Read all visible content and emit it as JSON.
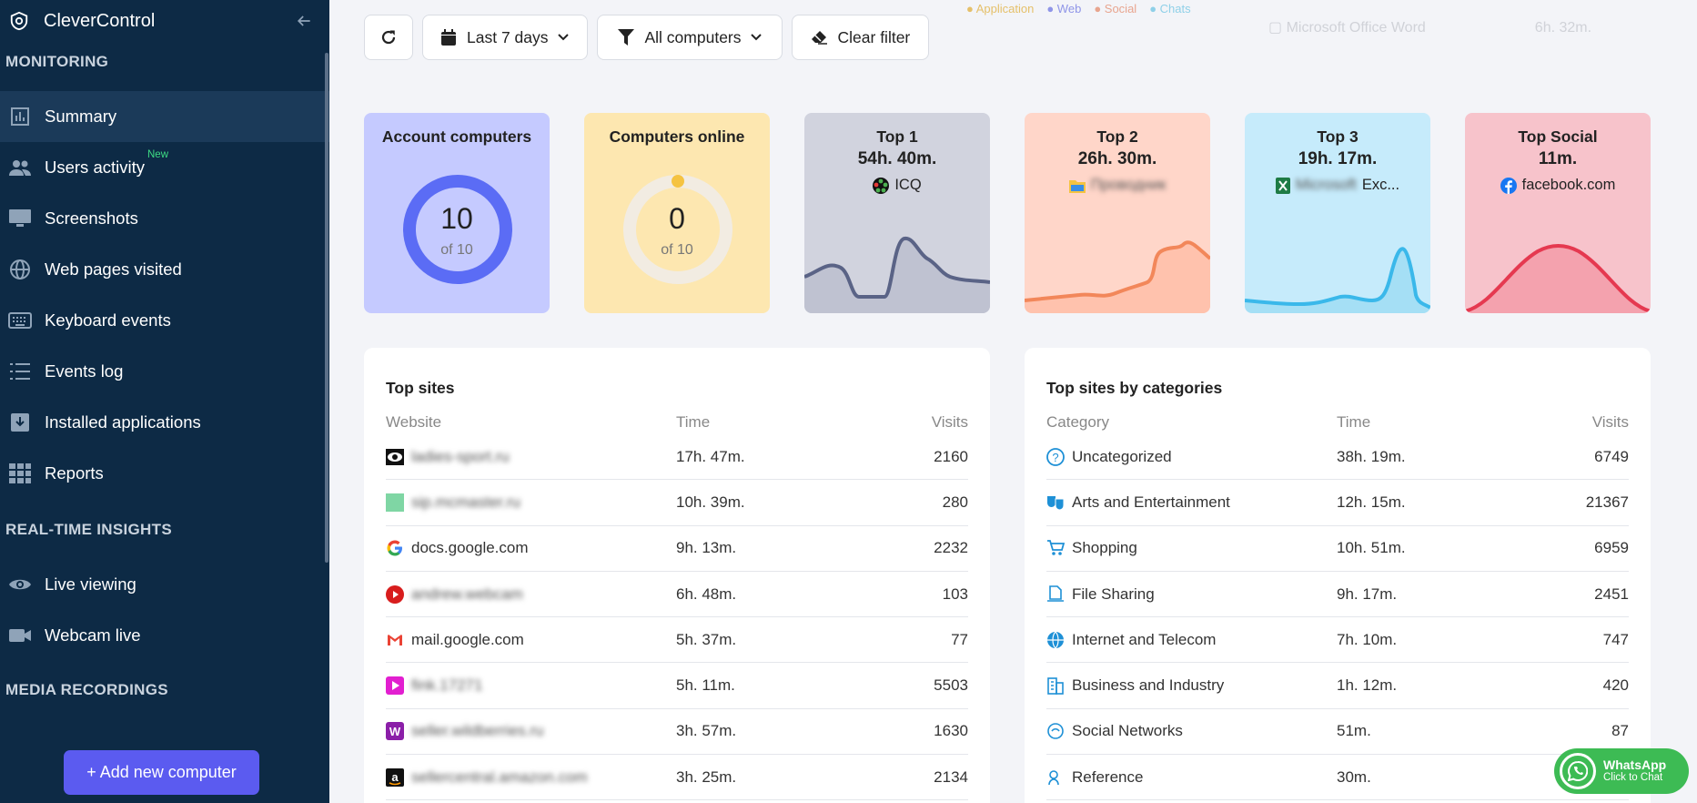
{
  "sidebar": {
    "brand": "CleverControl",
    "sections": {
      "monitoring": "MONITORING",
      "realtime": "REAL-TIME INSIGHTS",
      "media": "MEDIA RECORDINGS"
    },
    "items": {
      "summary": "Summary",
      "users_activity": "Users activity",
      "users_activity_badge": "New",
      "screenshots": "Screenshots",
      "web_pages": "Web pages visited",
      "keyboard": "Keyboard events",
      "events_log": "Events log",
      "installed_apps": "Installed applications",
      "reports": "Reports",
      "live_viewing": "Live viewing",
      "webcam_live": "Webcam live"
    },
    "add_button": "+ Add new computer"
  },
  "toolbar": {
    "period": "Last 7 days",
    "computers": "All computers",
    "clear_filter": "Clear filter"
  },
  "cards": {
    "account": {
      "title": "Account computers",
      "value": "10",
      "of": "of 10",
      "fraction": 1.0,
      "color": "#5b6cf5",
      "bg": "#c5caff"
    },
    "online": {
      "title": "Computers online",
      "value": "0",
      "of": "of 10",
      "fraction": 0.0,
      "color": "#f5c341",
      "bg": "#fde7b0"
    },
    "top1": {
      "title": "Top 1",
      "time": "54h. 40m.",
      "name": "ICQ",
      "color": "#5a6386",
      "bg": "#d1d3de"
    },
    "top2": {
      "title": "Top 2",
      "time": "26h. 30m.",
      "name": "Проводник",
      "color": "#f2875a",
      "bg": "#ffd6c9"
    },
    "top3": {
      "title": "Top 3",
      "time": "19h. 17m.",
      "name_blur": "Microsoft",
      "name": "Exc...",
      "color": "#3ab8ea",
      "bg": "#c6ebfb"
    },
    "social": {
      "title": "Top Social",
      "time": "11m.",
      "name": "facebook.com",
      "color": "#e53950",
      "bg": "#f7c3cb"
    }
  },
  "top_sites": {
    "title": "Top sites",
    "headers": [
      "Website",
      "Time",
      "Visits"
    ],
    "rows": [
      {
        "site": "ladies-sport.ru",
        "blur": true,
        "icon": "eye-icon",
        "time": "17h. 47m.",
        "visits": "2160"
      },
      {
        "site": "sip.mcmaster.ru",
        "blur": true,
        "icon": "green-square-icon",
        "time": "10h. 39m.",
        "visits": "280"
      },
      {
        "site": "docs.google.com",
        "blur": false,
        "icon": "google-icon",
        "time": "9h. 13m.",
        "visits": "2232"
      },
      {
        "site": "andrew.webcam",
        "blur": true,
        "icon": "youtube-icon",
        "time": "6h. 48m.",
        "visits": "103"
      },
      {
        "site": "mail.google.com",
        "blur": false,
        "icon": "gmail-icon",
        "time": "5h. 37m.",
        "visits": "77"
      },
      {
        "site": "fink.17271",
        "blur": true,
        "icon": "play-pink-icon",
        "time": "5h. 11m.",
        "visits": "5503"
      },
      {
        "site": "seller.wildberries.ru",
        "blur": true,
        "icon": "wildberries-icon",
        "time": "3h. 57m.",
        "visits": "1630"
      },
      {
        "site": "sellercentral.amazon.com",
        "blur": true,
        "icon": "amazon-icon",
        "time": "3h. 25m.",
        "visits": "2134"
      }
    ]
  },
  "top_categories": {
    "title": "Top sites by categories",
    "headers": [
      "Category",
      "Time",
      "Visits"
    ],
    "rows": [
      {
        "name": "Uncategorized",
        "icon": "question-icon",
        "time": "38h. 19m.",
        "visits": "6749"
      },
      {
        "name": "Arts and Entertainment",
        "icon": "theater-masks-icon",
        "time": "12h. 15m.",
        "visits": "21367"
      },
      {
        "name": "Shopping",
        "icon": "cart-icon",
        "time": "10h. 51m.",
        "visits": "6959"
      },
      {
        "name": "File Sharing",
        "icon": "file-share-icon",
        "time": "9h. 17m.",
        "visits": "2451"
      },
      {
        "name": "Internet and Telecom",
        "icon": "globe-icon",
        "time": "7h. 10m.",
        "visits": "747"
      },
      {
        "name": "Business and Industry",
        "icon": "building-icon",
        "time": "1h. 12m.",
        "visits": "420"
      },
      {
        "name": "Social Networks",
        "icon": "social-icon",
        "time": "51m.",
        "visits": "87"
      },
      {
        "name": "Reference",
        "icon": "reference-icon",
        "time": "30m.",
        "visits": ""
      }
    ]
  },
  "whatsapp": {
    "title": "WhatsApp",
    "subtitle": "Click to Chat"
  }
}
